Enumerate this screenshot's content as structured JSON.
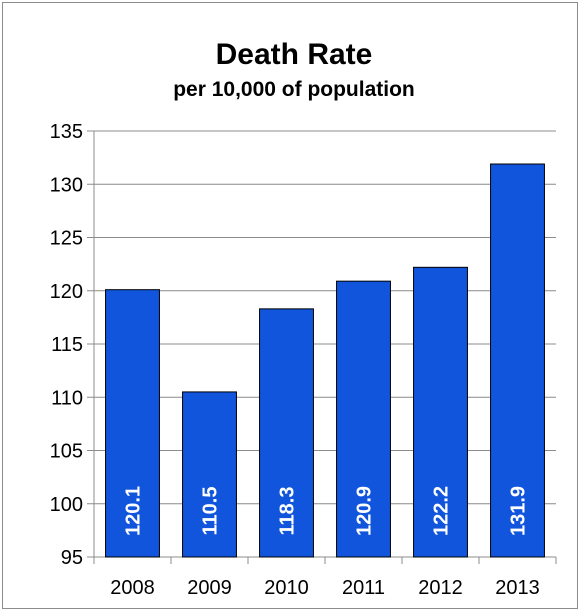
{
  "chart_data": {
    "type": "bar",
    "title": "Death Rate",
    "subtitle": "per 10,000  of population",
    "categories": [
      "2008",
      "2009",
      "2010",
      "2011",
      "2012",
      "2013"
    ],
    "values": [
      120.1,
      110.5,
      118.3,
      120.9,
      122.2,
      131.9
    ],
    "data_labels": [
      "120.1",
      "110.5",
      "118.3",
      "120.9",
      "122.2",
      "131.9"
    ],
    "ylim": [
      95,
      135
    ],
    "yticks": [
      95,
      100,
      105,
      110,
      115,
      120,
      125,
      130,
      135
    ],
    "ytick_labels": [
      "95",
      "100",
      "105",
      "110",
      "115",
      "120",
      "125",
      "130",
      "135"
    ],
    "grid": true,
    "legend": "none",
    "bar_color": "#1155dd",
    "bar_border_color": "#000000"
  }
}
